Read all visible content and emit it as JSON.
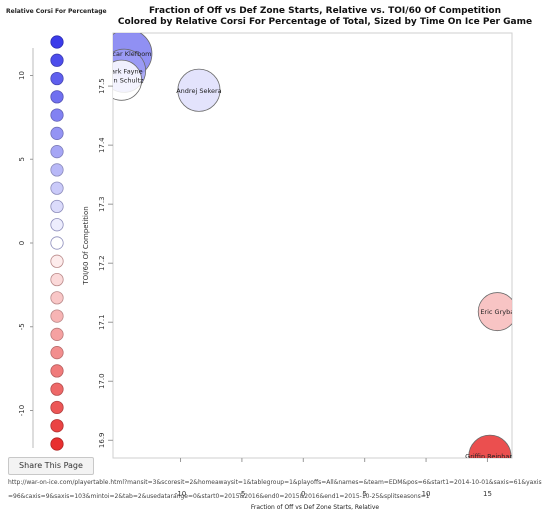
{
  "chart_data": {
    "type": "scatter",
    "title": "Fraction of Off vs Def Zone Starts, Relative vs. TOI/60 Of Competition",
    "subtitle": "Colored by Relative Corsi For Percentage of Total, Sized by Time On Ice Per Game",
    "xlabel": "Fraction of Off vs Def Zone Starts, Relative",
    "ylabel": "TOI/60 Of Competition",
    "yticks": [
      "16.9",
      "17.0",
      "17.1",
      "17.2",
      "17.3",
      "17.4",
      "17.5"
    ],
    "xticks": [
      "-10",
      "-5",
      "0",
      "5",
      "10",
      "15"
    ],
    "xlim": [
      -15.5,
      17
    ],
    "ylim": [
      16.87,
      17.59
    ],
    "points": [
      {
        "name": "Oscar Klefbom",
        "x": -14.3,
        "y": 17.555,
        "toi": 23.5,
        "cf_rel": 8
      },
      {
        "name": "Mark Fayne",
        "x": -14.6,
        "y": 17.526,
        "toi": 21.0,
        "cf_rel": 6
      },
      {
        "name": "Justin Schultz",
        "x": -14.8,
        "y": 17.51,
        "toi": 19.5,
        "cf_rel": 0
      },
      {
        "name": "Andrej Sekera",
        "x": -8.5,
        "y": 17.493,
        "toi": 20.5,
        "cf_rel": 2
      },
      {
        "name": "Eric Gryba",
        "x": 15.8,
        "y": 17.118,
        "toi": 18.5,
        "cf_rel": -4
      },
      {
        "name": "Griffin Reinhart",
        "x": 15.2,
        "y": 16.873,
        "toi": 20.5,
        "cf_rel": -12
      }
    ],
    "legend": {
      "title": "Relative Corsi For Percentage",
      "ticks": [
        "10",
        "5",
        "0",
        "-5",
        "-10"
      ],
      "max": 12,
      "min": -12
    },
    "grid": false
  },
  "share_button": "Share This Page",
  "url_text": "http://war-on-ice.com/playertable.html?mansit=3&scoresit=2&homeawaysit=1&tablegroup=1&playoffs=All&names=&team=EDM&pos=6&start1=2014-10-01&saxis=61&yaxis=96&caxis=9&saxis=103&mintoi=2&tab=2&usedatarange=0&start0=2015&2016&end0=2015&2016&end1=2015-10-25&splitseasons=1",
  "watermark": "war-on-ice.com",
  "colors": {
    "positive": "#3b3bea",
    "negative": "#e83030"
  }
}
